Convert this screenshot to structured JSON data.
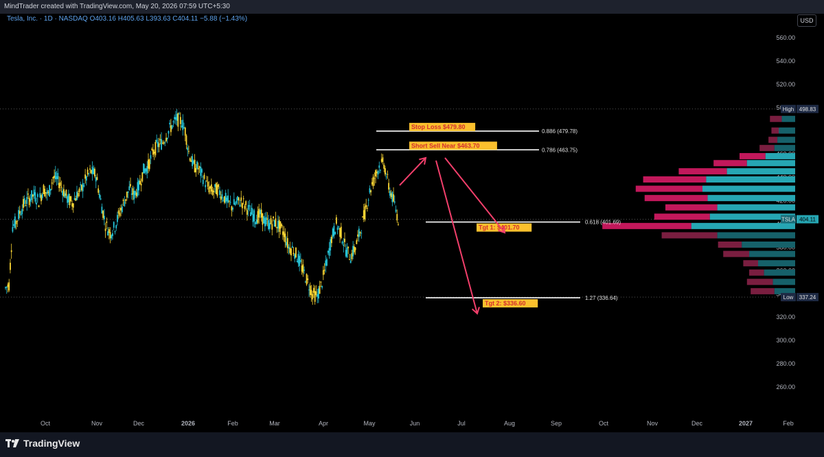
{
  "header": {
    "attribution": "MindTrader created with TradingView.com, May 20, 2026 07:59 UTC+5:30",
    "symbol_line": "Tesla, Inc. · 1D · NASDAQ  O403.16  H405.63  L393.63  C404.11  −5.88 (−1.43%)",
    "currency_button": "USD"
  },
  "footer": {
    "brand": "TradingView"
  },
  "colors": {
    "up": "#26c6da",
    "down": "#fdd835",
    "fib_line": "#ffffff",
    "arrow": "#f23f6b",
    "label_bg": "#fbc02d",
    "label_text": "#d32f2f",
    "vp_up": "#26a6b3",
    "vp_down": "#c2185b",
    "vp_up_dim": "#16616a",
    "vp_down_dim": "#7a1e40",
    "axis_text": "#b2b5be"
  },
  "chart_data": {
    "type": "candlestick",
    "symbol": "TSLA",
    "title": "Tesla, Inc. · 1D · NASDAQ",
    "ylim": [
      260,
      570
    ],
    "y_ticks": [
      260,
      280,
      300,
      320,
      340,
      360,
      380,
      400,
      420,
      440,
      460,
      480,
      500,
      520,
      540,
      560
    ],
    "y_tick_labels": [
      "260.00",
      "280.00",
      "300.00",
      "320.00",
      "340.00",
      "360.00",
      "380.00",
      "400.00",
      "420.00",
      "440.00",
      "460.00",
      "480.00",
      "500.00",
      "520.00",
      "540.00",
      "560.00"
    ],
    "x_ticks": [
      "Oct",
      "Nov",
      "Dec",
      "2026",
      "Feb",
      "Mar",
      "Apr",
      "May",
      "Jun",
      "Jul",
      "Aug",
      "Sep",
      "Oct",
      "Nov",
      "Dec",
      "2027",
      "Feb"
    ],
    "price_path": [
      [
        0,
        345
      ],
      [
        3,
        348
      ],
      [
        6,
        398
      ],
      [
        9,
        402
      ],
      [
        12,
        410
      ],
      [
        16,
        418
      ],
      [
        20,
        422
      ],
      [
        24,
        425
      ],
      [
        28,
        420
      ],
      [
        32,
        430
      ],
      [
        36,
        425
      ],
      [
        40,
        440
      ],
      [
        44,
        438
      ],
      [
        48,
        430
      ],
      [
        52,
        422
      ],
      [
        56,
        418
      ],
      [
        60,
        425
      ],
      [
        64,
        430
      ],
      [
        68,
        440
      ],
      [
        72,
        445
      ],
      [
        76,
        442
      ],
      [
        80,
        420
      ],
      [
        84,
        400
      ],
      [
        88,
        392
      ],
      [
        92,
        398
      ],
      [
        96,
        410
      ],
      [
        100,
        420
      ],
      [
        104,
        430
      ],
      [
        108,
        425
      ],
      [
        112,
        432
      ],
      [
        116,
        446
      ],
      [
        120,
        450
      ],
      [
        124,
        462
      ],
      [
        128,
        468
      ],
      [
        132,
        470
      ],
      [
        136,
        478
      ],
      [
        140,
        485
      ],
      [
        144,
        490
      ],
      [
        148,
        488
      ],
      [
        151,
        480
      ],
      [
        154,
        462
      ],
      [
        158,
        450
      ],
      [
        162,
        448
      ],
      [
        166,
        440
      ],
      [
        170,
        432
      ],
      [
        174,
        428
      ],
      [
        178,
        430
      ],
      [
        182,
        425
      ],
      [
        186,
        420
      ],
      [
        190,
        415
      ],
      [
        194,
        418
      ],
      [
        198,
        420
      ],
      [
        202,
        415
      ],
      [
        206,
        410
      ],
      [
        210,
        405
      ],
      [
        214,
        408
      ],
      [
        218,
        402
      ],
      [
        222,
        400
      ],
      [
        226,
        402
      ],
      [
        230,
        398
      ],
      [
        234,
        392
      ],
      [
        238,
        380
      ],
      [
        242,
        378
      ],
      [
        246,
        370
      ],
      [
        250,
        360
      ],
      [
        254,
        350
      ],
      [
        258,
        340
      ],
      [
        262,
        338
      ],
      [
        266,
        350
      ],
      [
        270,
        368
      ],
      [
        274,
        388
      ],
      [
        278,
        400
      ],
      [
        282,
        392
      ],
      [
        286,
        378
      ],
      [
        290,
        372
      ],
      [
        294,
        380
      ],
      [
        298,
        394
      ],
      [
        302,
        410
      ],
      [
        306,
        428
      ],
      [
        310,
        440
      ],
      [
        314,
        450
      ],
      [
        318,
        452
      ],
      [
        322,
        432
      ],
      [
        326,
        420
      ],
      [
        330,
        404
      ]
    ],
    "last_price": 404.11,
    "price_range_markers": {
      "high": 498.83,
      "low": 337.24,
      "high_label": "High",
      "low_label": "Low",
      "high_text": "498.83",
      "low_text": "337.24",
      "last_label": "TSLA",
      "last_text": "404.11"
    },
    "fib_levels": [
      {
        "ratio": 0.886,
        "price": 479.78,
        "text": "0.886 (479.78)"
      },
      {
        "ratio": 0.786,
        "price": 463.75,
        "text": "0.786 (463.75)"
      },
      {
        "ratio": 0.618,
        "price": 401.69,
        "text": "0.618 (401.69)"
      },
      {
        "ratio": 1.27,
        "price": 336.64,
        "text": "1.27 (336.64)"
      }
    ],
    "annotations": [
      {
        "id": "stop-loss",
        "text": "Stop Loss $479.80",
        "price": 479.8
      },
      {
        "id": "short-sell",
        "text": "Short Sell Near $463.70",
        "price": 463.7
      },
      {
        "id": "target-1",
        "text": "Tgt 1: $401.70",
        "price": 401.7
      },
      {
        "id": "target-2",
        "text": "Tgt 2: $336.60",
        "price": 336.6
      }
    ],
    "volume_profile": [
      {
        "price": 490,
        "up": 18,
        "down": 16
      },
      {
        "price": 480,
        "up": 22,
        "down": 10
      },
      {
        "price": 472,
        "up": 24,
        "down": 12
      },
      {
        "price": 465,
        "up": 28,
        "down": 20
      },
      {
        "price": 458,
        "up": 40,
        "down": 35
      },
      {
        "price": 452,
        "up": 65,
        "down": 45
      },
      {
        "price": 445,
        "up": 92,
        "down": 65
      },
      {
        "price": 438,
        "up": 120,
        "down": 85
      },
      {
        "price": 430,
        "up": 125,
        "down": 90
      },
      {
        "price": 422,
        "up": 118,
        "down": 85
      },
      {
        "price": 414,
        "up": 105,
        "down": 70
      },
      {
        "price": 406,
        "up": 115,
        "down": 75
      },
      {
        "price": 398,
        "up": 140,
        "down": 120
      },
      {
        "price": 390,
        "up": 105,
        "down": 75
      },
      {
        "price": 382,
        "up": 72,
        "down": 32
      },
      {
        "price": 374,
        "up": 62,
        "down": 35
      },
      {
        "price": 366,
        "up": 50,
        "down": 20
      },
      {
        "price": 358,
        "up": 42,
        "down": 20
      },
      {
        "price": 350,
        "up": 30,
        "down": 35
      },
      {
        "price": 342,
        "up": 28,
        "down": 32
      },
      {
        "price": 336,
        "up": 10,
        "down": 8
      }
    ]
  }
}
